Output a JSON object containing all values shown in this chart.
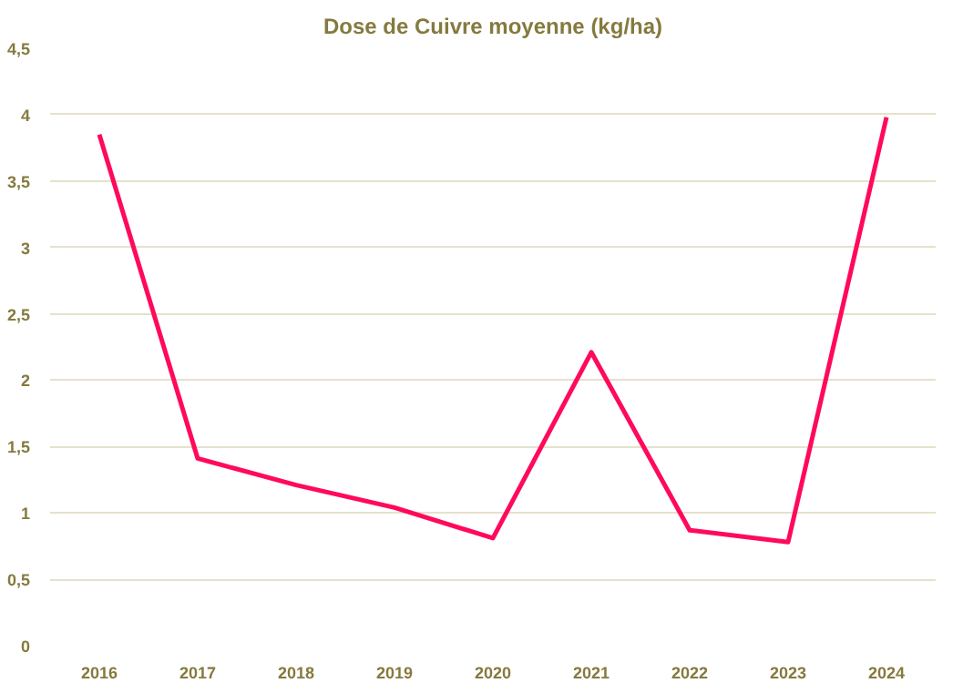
{
  "chart_data": {
    "type": "line",
    "title": "Dose de Cuivre moyenne (kg/ha)",
    "categories": [
      "2016",
      "2017",
      "2018",
      "2019",
      "2020",
      "2021",
      "2022",
      "2023",
      "2024"
    ],
    "series": [
      {
        "color": "#ff0a5a",
        "values": [
          3.85,
          1.41,
          1.21,
          1.04,
          0.81,
          2.21,
          0.87,
          0.78,
          3.98
        ]
      }
    ],
    "ylim": [
      0,
      4.5
    ],
    "yticks": [
      0,
      {
        "value": 0.5,
        "label": "0,5"
      },
      1,
      {
        "value": 1.5,
        "label": "1,5"
      },
      2,
      {
        "value": 2.5,
        "label": "2,5"
      },
      3,
      {
        "value": 3.5,
        "label": "3,5"
      },
      4,
      {
        "value": 4.5,
        "label": "4,5"
      }
    ],
    "grid": "y",
    "marker": "none",
    "line_style": "solid"
  }
}
